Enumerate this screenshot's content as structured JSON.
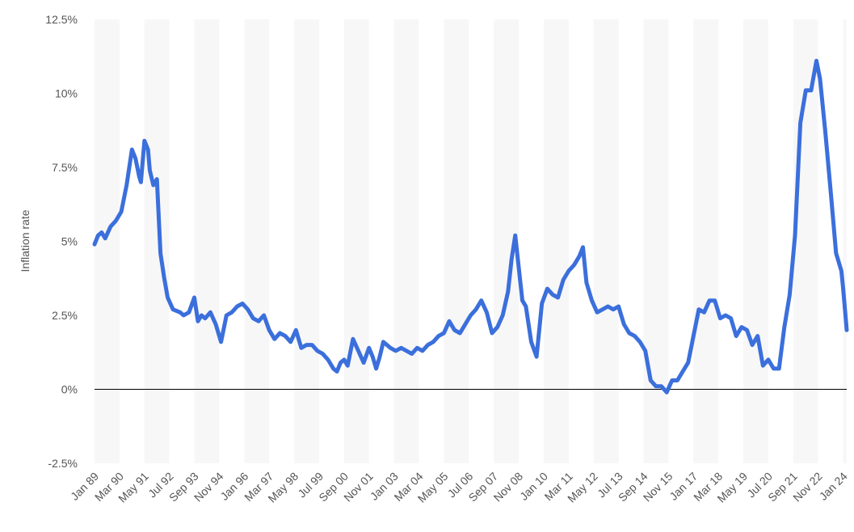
{
  "chart_data": {
    "type": "line",
    "title": "",
    "xlabel": "",
    "ylabel": "Inflation rate",
    "ylim": [
      -2.5,
      12.5
    ],
    "xlim": [
      "1989-01",
      "2024-03"
    ],
    "y_ticks": [
      {
        "value": -2.5,
        "label": "-2.5%"
      },
      {
        "value": 0,
        "label": "0%"
      },
      {
        "value": 2.5,
        "label": "2.5%"
      },
      {
        "value": 5,
        "label": "5%"
      },
      {
        "value": 7.5,
        "label": "7.5%"
      },
      {
        "value": 10,
        "label": "10%"
      },
      {
        "value": 12.5,
        "label": "12.5%"
      }
    ],
    "x_ticks": [
      "Jan 89",
      "Mar 90",
      "May 91",
      "Jul 92",
      "Sep 93",
      "Nov 94",
      "Jan 96",
      "Mar 97",
      "May 98",
      "Jul 99",
      "Sep 00",
      "Nov 01",
      "Jan 03",
      "Mar 04",
      "May 05",
      "Jul 06",
      "Sep 07",
      "Nov 08",
      "Jan 10",
      "Mar 11",
      "May 12",
      "Jul 13",
      "Sep 14",
      "Nov 15",
      "Jan 17",
      "Mar 18",
      "May 19",
      "Jul 20",
      "Sep 21",
      "Nov 22",
      "Jan 24"
    ],
    "grid": "alternating vertical bands",
    "legend": "none",
    "line_color": "#3b6fdc",
    "zero_line_color": "#000000",
    "band_color": "#f7f7f7",
    "series": [
      {
        "x": [
          "1989-01",
          "1989-03",
          "1989-05",
          "1989-07",
          "1989-10",
          "1990-01",
          "1990-04",
          "1990-07",
          "1990-10",
          "1990-12",
          "1991-02",
          "1991-03",
          "1991-05",
          "1991-07",
          "1991-08",
          "1991-10",
          "1991-12",
          "1992-02",
          "1992-04",
          "1992-06",
          "1992-09",
          "1993-01",
          "1993-03",
          "1993-06",
          "1993-09",
          "1993-11",
          "1994-01",
          "1994-03",
          "1994-06",
          "1994-09",
          "1994-12",
          "1995-03",
          "1995-06",
          "1995-09",
          "1995-12",
          "1996-03",
          "1996-06",
          "1996-09",
          "1996-12",
          "1997-03",
          "1997-06",
          "1997-09",
          "1997-12",
          "1998-03",
          "1998-06",
          "1998-09",
          "1998-12",
          "1999-03",
          "1999-06",
          "1999-09",
          "1999-12",
          "2000-03",
          "2000-05",
          "2000-07",
          "2000-09",
          "2000-11",
          "2001-02",
          "2001-05",
          "2001-08",
          "2001-11",
          "2002-01",
          "2002-03",
          "2002-05",
          "2002-07",
          "2002-09",
          "2002-11",
          "2003-02",
          "2003-05",
          "2003-08",
          "2003-11",
          "2004-02",
          "2004-05",
          "2004-08",
          "2004-11",
          "2005-02",
          "2005-05",
          "2005-08",
          "2005-11",
          "2006-02",
          "2006-05",
          "2006-08",
          "2006-11",
          "2007-02",
          "2007-05",
          "2007-08",
          "2007-11",
          "2008-02",
          "2008-05",
          "2008-07",
          "2008-09",
          "2008-11",
          "2009-01",
          "2009-03",
          "2009-06",
          "2009-09",
          "2009-12",
          "2010-03",
          "2010-06",
          "2010-09",
          "2010-12",
          "2011-03",
          "2011-06",
          "2011-09",
          "2011-11",
          "2012-01",
          "2012-04",
          "2012-07",
          "2012-10",
          "2013-01",
          "2013-04",
          "2013-07",
          "2013-10",
          "2014-01",
          "2014-04",
          "2014-07",
          "2014-10",
          "2015-01",
          "2015-04",
          "2015-07",
          "2015-10",
          "2016-01",
          "2016-04",
          "2016-07",
          "2016-10",
          "2017-01",
          "2017-04",
          "2017-07",
          "2017-10",
          "2018-01",
          "2018-04",
          "2018-07",
          "2018-10",
          "2019-01",
          "2019-04",
          "2019-07",
          "2019-10",
          "2020-01",
          "2020-04",
          "2020-07",
          "2020-10",
          "2021-01",
          "2021-04",
          "2021-07",
          "2021-10",
          "2022-01",
          "2022-04",
          "2022-07",
          "2022-10",
          "2022-12",
          "2023-03",
          "2023-06",
          "2023-09",
          "2023-12",
          "2024-01",
          "2024-03"
        ],
        "y": [
          4.9,
          5.2,
          5.3,
          5.1,
          5.5,
          5.7,
          6.0,
          6.9,
          8.1,
          7.8,
          7.2,
          7.0,
          8.4,
          8.1,
          7.4,
          6.9,
          7.1,
          4.6,
          3.8,
          3.1,
          2.7,
          2.6,
          2.5,
          2.6,
          3.1,
          2.3,
          2.5,
          2.4,
          2.6,
          2.2,
          1.6,
          2.5,
          2.6,
          2.8,
          2.9,
          2.7,
          2.4,
          2.3,
          2.5,
          2.0,
          1.7,
          1.9,
          1.8,
          1.6,
          2.0,
          1.4,
          1.5,
          1.5,
          1.3,
          1.2,
          1.0,
          0.7,
          0.6,
          0.9,
          1.0,
          0.8,
          1.7,
          1.3,
          0.9,
          1.4,
          1.1,
          0.7,
          1.1,
          1.6,
          1.5,
          1.4,
          1.3,
          1.4,
          1.3,
          1.2,
          1.4,
          1.3,
          1.5,
          1.6,
          1.8,
          1.9,
          2.3,
          2.0,
          1.9,
          2.2,
          2.5,
          2.7,
          3.0,
          2.6,
          1.9,
          2.1,
          2.5,
          3.3,
          4.4,
          5.2,
          4.1,
          3.0,
          2.8,
          1.6,
          1.1,
          2.9,
          3.4,
          3.2,
          3.1,
          3.7,
          4.0,
          4.2,
          4.5,
          4.8,
          3.6,
          3.0,
          2.6,
          2.7,
          2.8,
          2.7,
          2.8,
          2.2,
          1.9,
          1.8,
          1.6,
          1.3,
          0.3,
          0.1,
          0.1,
          -0.1,
          0.3,
          0.3,
          0.6,
          0.9,
          1.8,
          2.7,
          2.6,
          3.0,
          3.0,
          2.4,
          2.5,
          2.4,
          1.8,
          2.1,
          2.0,
          1.5,
          1.8,
          0.8,
          1.0,
          0.7,
          0.7,
          2.1,
          3.2,
          5.2,
          9.0,
          10.1,
          10.1,
          11.1,
          10.5,
          8.7,
          6.7,
          4.6,
          4.0,
          3.4,
          2.0
        ]
      }
    ]
  }
}
